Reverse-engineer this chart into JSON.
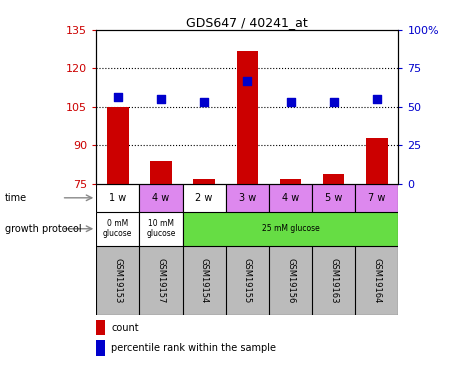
{
  "title": "GDS647 / 40241_at",
  "samples": [
    "GSM19153",
    "GSM19157",
    "GSM19154",
    "GSM19155",
    "GSM19156",
    "GSM19163",
    "GSM19164"
  ],
  "bar_values": [
    105,
    84,
    77,
    127,
    77,
    79,
    93
  ],
  "dot_values": [
    109,
    108,
    107,
    115,
    107,
    107,
    108
  ],
  "bar_bottom": 75,
  "ylim_left": [
    75,
    135
  ],
  "ylim_right": [
    0,
    100
  ],
  "yticks_left": [
    75,
    90,
    105,
    120,
    135
  ],
  "yticks_right": [
    0,
    25,
    50,
    75,
    100
  ],
  "ytick_labels_right": [
    "0",
    "25",
    "50",
    "75",
    "100%"
  ],
  "bar_color": "#cc0000",
  "dot_color": "#0000cc",
  "plot_bg": "#ffffff",
  "growth_protocol_groups": [
    {
      "label": "0 mM\nglucose",
      "span": 1,
      "color": "#ffffff"
    },
    {
      "label": "10 mM\nglucose",
      "span": 1,
      "color": "#ffffff"
    },
    {
      "label": "25 mM glucose",
      "span": 5,
      "color": "#66dd44"
    }
  ],
  "group_starts": [
    0,
    1,
    2
  ],
  "time_labels": [
    "1 w",
    "4 w",
    "2 w",
    "3 w",
    "4 w",
    "5 w",
    "7 w"
  ],
  "time_colors": [
    "#ffffff",
    "#dd88ee",
    "#ffffff",
    "#dd88ee",
    "#dd88ee",
    "#dd88ee",
    "#dd88ee"
  ],
  "sample_bg_color": "#bbbbbb",
  "legend_bar_label": "count",
  "legend_dot_label": "percentile rank within the sample",
  "growth_protocol_label": "growth protocol",
  "time_label": "time",
  "bar_width": 0.5,
  "dot_size": 40,
  "figsize": [
    4.58,
    3.75
  ],
  "dpi": 100
}
